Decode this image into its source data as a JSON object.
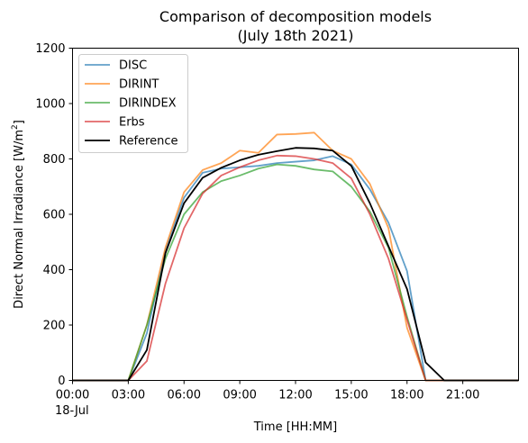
{
  "chart_data": {
    "type": "line",
    "title": "Comparison of decomposition models",
    "subtitle": "(July 18th 2021)",
    "xlabel": "Time [HH:MM]",
    "ylabel_main": "Direct Normal Irradiance [W/m",
    "ylabel_sup": "2",
    "ylabel_end": "]",
    "xlim": [
      0,
      24
    ],
    "ylim": [
      0,
      1200
    ],
    "x_ticks": [
      0,
      3,
      6,
      9,
      12,
      15,
      18,
      21
    ],
    "x_tick_labels": [
      "00:00",
      "03:00",
      "06:00",
      "09:00",
      "12:00",
      "15:00",
      "18:00",
      "21:00"
    ],
    "x_date_label": "18-Jul",
    "y_ticks": [
      0,
      200,
      400,
      600,
      800,
      1000,
      1200
    ],
    "y_tick_labels": [
      "0",
      "200",
      "400",
      "600",
      "800",
      "1000",
      "1200"
    ],
    "grid": false,
    "legend_position": "top-left",
    "x": [
      0,
      1,
      2,
      3,
      4,
      5,
      6,
      7,
      8,
      9,
      10,
      11,
      12,
      13,
      14,
      15,
      16,
      17,
      18,
      19,
      20,
      21,
      22,
      23,
      24
    ],
    "series": [
      {
        "name": "DISC",
        "color": "#1f77b4",
        "opacity": 0.7,
        "width": 1.8,
        "values": [
          0,
          0,
          0,
          0,
          170,
          470,
          660,
          750,
          765,
          770,
          775,
          785,
          790,
          795,
          810,
          780,
          690,
          570,
          395,
          0,
          0,
          0,
          0,
          0,
          0
        ]
      },
      {
        "name": "DIRINT",
        "color": "#ff7f0e",
        "opacity": 0.7,
        "width": 1.8,
        "values": [
          0,
          0,
          0,
          0,
          200,
          480,
          680,
          760,
          785,
          830,
          822,
          888,
          890,
          895,
          830,
          800,
          710,
          550,
          190,
          0,
          0,
          0,
          0,
          0,
          0
        ]
      },
      {
        "name": "DIRINDEX",
        "color": "#2ca02c",
        "opacity": 0.7,
        "width": 1.8,
        "values": [
          0,
          0,
          0,
          0,
          200,
          440,
          600,
          680,
          720,
          740,
          765,
          780,
          775,
          762,
          755,
          700,
          610,
          480,
          230,
          0,
          0,
          0,
          0,
          0,
          0
        ]
      },
      {
        "name": "Erbs",
        "color": "#d62728",
        "opacity": 0.7,
        "width": 1.8,
        "values": [
          0,
          0,
          0,
          0,
          70,
          350,
          550,
          675,
          740,
          770,
          795,
          812,
          810,
          800,
          785,
          730,
          600,
          440,
          220,
          0,
          0,
          0,
          0,
          0,
          0
        ]
      },
      {
        "name": "Reference",
        "color": "#000000",
        "opacity": 1,
        "width": 1.8,
        "values": [
          0,
          0,
          0,
          0,
          110,
          460,
          640,
          732,
          768,
          795,
          815,
          828,
          840,
          838,
          830,
          775,
          640,
          485,
          330,
          65,
          0,
          0,
          0,
          0,
          0
        ]
      }
    ]
  }
}
